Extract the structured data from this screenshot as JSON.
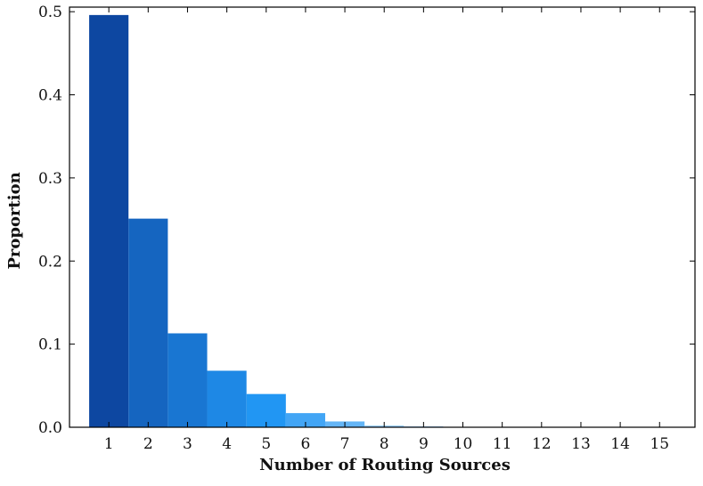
{
  "chart_data": {
    "type": "bar",
    "title": "",
    "xlabel": "Number of Routing Sources",
    "ylabel": "Proportion",
    "categories": [
      "1",
      "2",
      "3",
      "4",
      "5",
      "6",
      "7",
      "8",
      "9",
      "10",
      "11",
      "12",
      "13",
      "14",
      "15"
    ],
    "values": [
      0.496,
      0.251,
      0.113,
      0.068,
      0.04,
      0.017,
      0.007,
      0.002,
      0.001,
      0.0005,
      0.0003,
      0.0002,
      0.0001,
      0.0001,
      0.0001
    ],
    "bar_colors": [
      "#0d47a1",
      "#1565c0",
      "#1976d2",
      "#1e88e5",
      "#2196f3",
      "#42a5f5",
      "#64b5f6",
      "#90caf9",
      "#90caf9",
      "#90caf9",
      "#90caf9",
      "#90caf9",
      "#90caf9",
      "#90caf9",
      "#90caf9"
    ],
    "ylim": [
      0,
      0.5
    ],
    "xlim": [
      0.0,
      15.9
    ],
    "yticks": [
      0.0,
      0.1,
      0.2,
      0.3,
      0.4,
      0.5
    ],
    "ytick_labels": [
      "0.0",
      "0.1",
      "0.2",
      "0.3",
      "0.4",
      "0.5"
    ],
    "grid": false
  }
}
